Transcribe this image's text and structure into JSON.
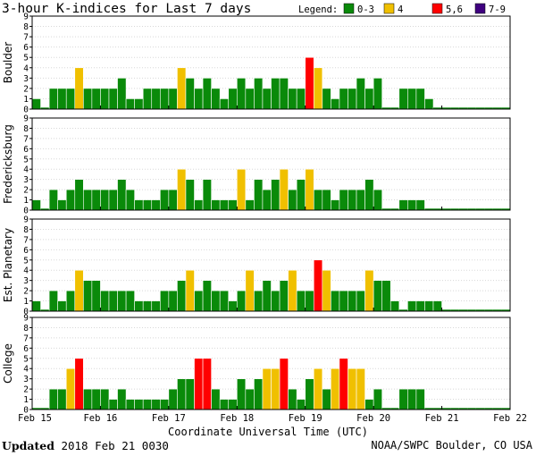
{
  "chart_data": {
    "type": "bar",
    "title": "3-hour K-indices for Last 7 days",
    "legend": {
      "label": "Legend:",
      "entries": [
        {
          "label": "0-3",
          "color": "#0a8a0a"
        },
        {
          "label": "4",
          "color": "#f0c000"
        },
        {
          "label": "5,6",
          "color": "#ff0000"
        },
        {
          "label": "7-9",
          "color": "#3f007f"
        }
      ]
    },
    "xlabel": "Coordinate Universal Time (UTC)",
    "x_ticks": [
      "Feb 15",
      "Feb 16",
      "Feb 17",
      "Feb 18",
      "Feb 19",
      "Feb 20",
      "Feb 21",
      "Feb 22"
    ],
    "ylim": [
      0,
      9
    ],
    "y_ticks": [
      "0",
      "1",
      "2",
      "3",
      "4",
      "5",
      "6",
      "7",
      "8",
      "9"
    ],
    "bars_per_day": 8,
    "series": [
      {
        "name": "Boulder",
        "values": [
          1,
          0,
          2,
          2,
          2,
          4,
          2,
          2,
          2,
          2,
          3,
          1,
          1,
          2,
          2,
          2,
          2,
          4,
          3,
          2,
          3,
          2,
          1,
          2,
          3,
          2,
          3,
          2,
          3,
          3,
          2,
          2,
          5,
          4,
          2,
          1,
          2,
          2,
          3,
          2,
          3,
          0,
          0,
          2,
          2,
          2,
          1,
          0,
          0,
          0,
          0,
          0,
          0,
          0,
          0,
          0
        ]
      },
      {
        "name": "Fredericksburg",
        "values": [
          1,
          0,
          2,
          1,
          2,
          3,
          2,
          2,
          2,
          2,
          3,
          2,
          1,
          1,
          1,
          2,
          2,
          4,
          3,
          1,
          3,
          1,
          1,
          1,
          4,
          1,
          3,
          2,
          3,
          4,
          2,
          3,
          4,
          2,
          2,
          1,
          2,
          2,
          2,
          3,
          2,
          0,
          0,
          1,
          1,
          1,
          0,
          0,
          0,
          0,
          0,
          0,
          0,
          0,
          0,
          0
        ]
      },
      {
        "name": "Est. Planetary",
        "values": [
          1,
          0,
          2,
          1,
          2,
          4,
          3,
          3,
          2,
          2,
          2,
          2,
          1,
          1,
          1,
          2,
          2,
          3,
          4,
          2,
          3,
          2,
          2,
          1,
          2,
          4,
          2,
          3,
          2,
          3,
          4,
          2,
          2,
          5,
          4,
          2,
          2,
          2,
          2,
          4,
          3,
          3,
          1,
          0,
          1,
          1,
          1,
          1,
          0,
          0,
          0,
          0,
          0,
          0,
          0,
          0
        ]
      },
      {
        "name": "College",
        "values": [
          0,
          0,
          2,
          2,
          4,
          5,
          2,
          2,
          2,
          1,
          2,
          1,
          1,
          1,
          1,
          1,
          2,
          3,
          3,
          5,
          5,
          2,
          1,
          1,
          3,
          2,
          3,
          4,
          4,
          5,
          2,
          1,
          3,
          4,
          2,
          4,
          5,
          4,
          4,
          1,
          2,
          0,
          0,
          2,
          2,
          2,
          0,
          0,
          0,
          0,
          0,
          0,
          0,
          0,
          0,
          0
        ]
      }
    ]
  },
  "footer": {
    "updated_label": "Updated",
    "updated_value": "2018 Feb 21 0030",
    "source": "NOAA/SWPC Boulder, CO USA"
  }
}
